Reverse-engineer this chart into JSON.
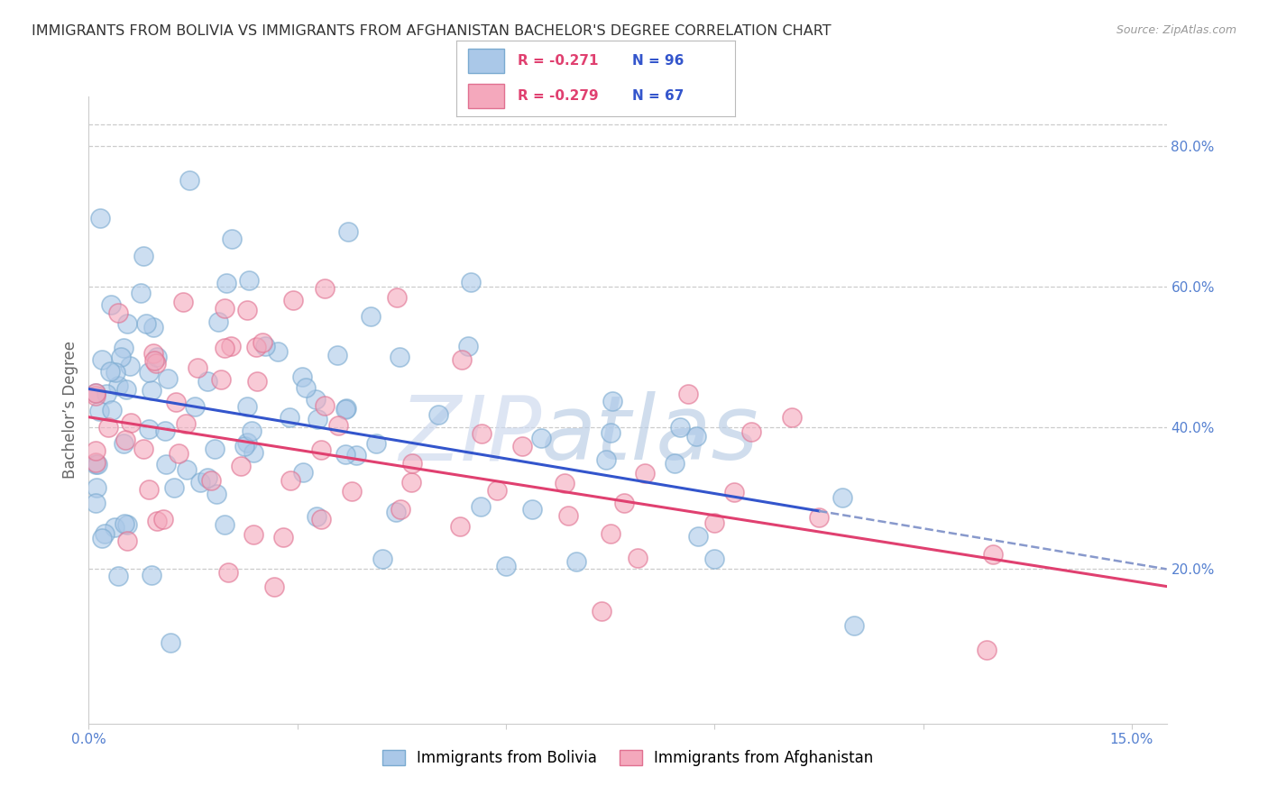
{
  "title": "IMMIGRANTS FROM BOLIVIA VS IMMIGRANTS FROM AFGHANISTAN BACHELOR'S DEGREE CORRELATION CHART",
  "source_text": "Source: ZipAtlas.com",
  "ylabel": "Bachelor’s Degree",
  "right_yticks": [
    0.0,
    0.2,
    0.4,
    0.6,
    0.8
  ],
  "right_yticklabels": [
    "",
    "20.0%",
    "40.0%",
    "60.0%",
    "80.0%"
  ],
  "xticks": [
    0.0,
    0.03,
    0.06,
    0.09,
    0.12,
    0.15
  ],
  "xticklabels": [
    "0.0%",
    "",
    "",
    "",
    "",
    "15.0%"
  ],
  "xlim": [
    0.0,
    0.155
  ],
  "ylim": [
    -0.02,
    0.87
  ],
  "bolivia_face_color": "#aac8e8",
  "bolivia_edge_color": "#7aaad0",
  "afghanistan_face_color": "#f4a8bc",
  "afghanistan_edge_color": "#e07090",
  "bolivia_line_color": "#3355cc",
  "afghanistan_line_color": "#e04070",
  "bolivia_dash_color": "#8899cc",
  "legend_r_color": "#e04070",
  "legend_n_color": "#3355cc",
  "axis_label_color": "#5580d0",
  "legend_r_bolivia": "R = -0.271",
  "legend_n_bolivia": "N = 96",
  "legend_r_afghanistan": "R = -0.279",
  "legend_n_afghanistan": "N = 67",
  "watermark": "ZIPatlas",
  "watermark_color": "#c8d8f0",
  "title_fontsize": 11.5,
  "bolivia_intercept": 0.455,
  "bolivia_slope": -1.65,
  "afghanistan_intercept": 0.415,
  "afghanistan_slope": -1.55,
  "bolivia_line_end_x": 0.105,
  "seed": 42
}
